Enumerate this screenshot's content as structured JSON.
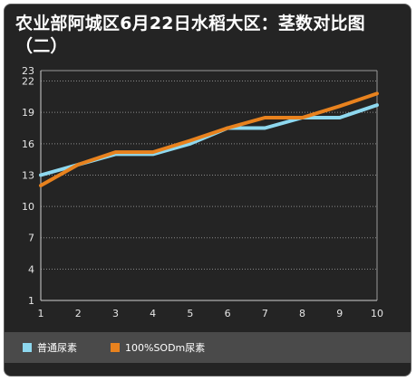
{
  "chart_data": {
    "type": "line",
    "title": "农业部阿城区6月22日水稻大区：茎数对比图（二）",
    "xlabel": "",
    "ylabel": "",
    "x": [
      1,
      2,
      3,
      4,
      5,
      6,
      7,
      8,
      9,
      10
    ],
    "x_tick_labels": [
      "1",
      "2",
      "3",
      "4",
      "5",
      "6",
      "7",
      "8",
      "9",
      "10"
    ],
    "y_ticks": [
      1,
      4,
      7,
      10,
      13,
      16,
      19,
      22,
      23
    ],
    "ylim": [
      1,
      23
    ],
    "grid": true,
    "legend_position": "bottom",
    "series": [
      {
        "name": "普通尿素",
        "color": "#8ed8ef",
        "values": [
          13,
          14,
          15,
          15,
          16,
          17.5,
          17.5,
          18.5,
          18.5,
          19.7
        ]
      },
      {
        "name": "100%SODm尿素",
        "color": "#e8821e",
        "values": [
          12,
          14,
          15.2,
          15.2,
          16.3,
          17.5,
          18.5,
          18.5,
          19.6,
          20.8
        ]
      }
    ]
  }
}
